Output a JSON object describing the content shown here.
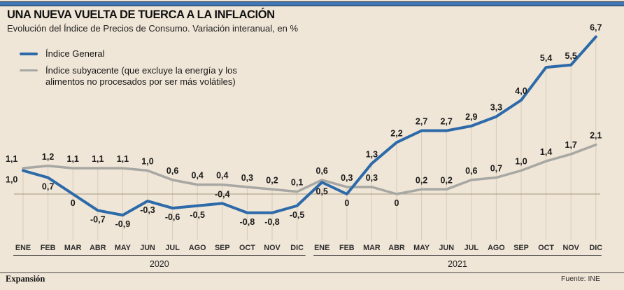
{
  "header": {
    "title": "UNA NUEVA VUELTA DE TUERCA A LA INFLACIÓN",
    "subtitle": "Evolución del Índice de Precios de Consumo. Variación interanual, en %"
  },
  "legend": {
    "items": [
      {
        "name": "indice-general",
        "label": "Índice General",
        "color": "#2d6aa9"
      },
      {
        "name": "indice-subyacente",
        "label": "Índice subyacente (que excluye la energía y los\nalimentos no procesados por ser más volátiles)",
        "color": "#a7a7a3"
      }
    ]
  },
  "footer": {
    "brand": "Expansión",
    "source": "Fuente: INE"
  },
  "chart_data": {
    "type": "line",
    "months": [
      "ENE",
      "FEB",
      "MAR",
      "ABR",
      "MAY",
      "JUN",
      "JUL",
      "AGO",
      "SEP",
      "OCT",
      "NOV",
      "DIC"
    ],
    "year_groups": [
      "2020",
      "2021"
    ],
    "ylim": [
      -1.2,
      7.2
    ],
    "grid": "vertical-droplines-to-upper-series",
    "legend_position": "top-left",
    "colors": {
      "background": "#f0e6d7",
      "gridline": "#d9cbb5",
      "zero_line": "#a5977f",
      "axis": "#3f3f3f",
      "label": "#1b1b1b"
    },
    "series": [
      {
        "name": "Índice General",
        "color": "#2d6aa9",
        "stroke_width": 4,
        "values": [
          1.0,
          0.7,
          0,
          -0.7,
          -0.9,
          -0.3,
          -0.6,
          -0.5,
          -0.4,
          -0.8,
          -0.8,
          -0.5,
          0.5,
          0,
          1.3,
          2.2,
          2.7,
          2.7,
          2.9,
          3.3,
          4.0,
          5.4,
          5.5,
          6.7
        ],
        "labels": [
          "1,0",
          "0,7",
          "0",
          "-0,7",
          "-0,9",
          "-0,3",
          "-0,6",
          "-0,5",
          "-0,4",
          "-0,8",
          "-0,8",
          "-0,5",
          "0,5",
          "0",
          "1,3",
          "2,2",
          "2,7",
          "2,7",
          "2,9",
          "3,3",
          "4,0",
          "5,4",
          "5,5",
          "6,7"
        ],
        "label_pos": [
          "below",
          "below",
          "below",
          "below",
          "below",
          "below",
          "below",
          "below",
          "above",
          "below",
          "below",
          "below",
          "below",
          "below",
          "above",
          "above",
          "above",
          "above",
          "above",
          "above",
          "above",
          "above",
          "above",
          "above"
        ]
      },
      {
        "name": "Índice subyacente",
        "color": "#a7a7a3",
        "stroke_width": 3.5,
        "values": [
          1.1,
          1.2,
          1.1,
          1.1,
          1.1,
          1.0,
          0.6,
          0.4,
          0.4,
          0.3,
          0.2,
          0.1,
          0.6,
          0.3,
          0.3,
          0,
          0.2,
          0.2,
          0.6,
          0.7,
          1.0,
          1.4,
          1.7,
          2.1
        ],
        "labels": [
          "1,1",
          "1,2",
          "1,1",
          "1,1",
          "1,1",
          "1,0",
          "0,6",
          "0,4",
          "0,4",
          "0,3",
          "0,2",
          "0,1",
          "0,6",
          "0,3",
          "0,3",
          "0",
          "0,2",
          "0,2",
          "0,6",
          "0,7",
          "1,0",
          "1,4",
          "1,7",
          "2,1"
        ],
        "label_pos": [
          "above",
          "above",
          "above",
          "above",
          "above",
          "above",
          "above",
          "above",
          "above",
          "above",
          "above",
          "above",
          "above",
          "above",
          "above",
          "below",
          "above",
          "above",
          "above",
          "above",
          "above",
          "above",
          "above",
          "above"
        ]
      }
    ]
  }
}
